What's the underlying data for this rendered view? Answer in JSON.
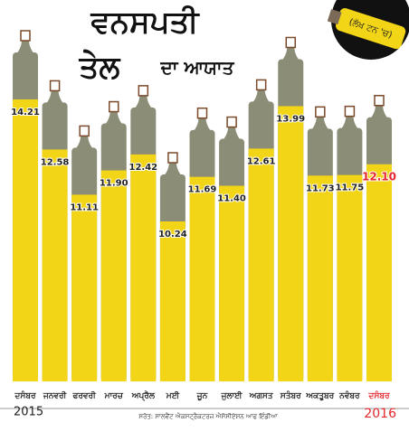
{
  "chart_data": {
    "type": "bar",
    "title_lines": [
      "ਵਨਸਪਤੀ",
      "ਤੇਲ",
      "ਦਾ ਆਯਾਤ"
    ],
    "unit": "(ਲੱਖ ਟਨ 'ਚ)",
    "categories": [
      "ਦਸੰਬਰ",
      "ਜਨਵਰੀ",
      "ਫਰਵਰੀ",
      "ਮਾਰਚ",
      "ਅਪ੍ਰੈਲ",
      "ਮਈ",
      "ਜੂਨ",
      "ਜੁਲਾਈ",
      "ਅਗਸਤ",
      "ਸਤੰਬਰ",
      "ਅਕਤੂਬਰ",
      "ਨਵੰਬਰ",
      "ਦਸੰਬਰ"
    ],
    "values": [
      14.21,
      12.58,
      11.11,
      11.9,
      12.42,
      10.24,
      11.69,
      11.4,
      12.61,
      13.99,
      11.73,
      11.75,
      12.1
    ],
    "value_labels": [
      "14.21",
      "12.58",
      "11.11",
      "11.90",
      "12.42",
      "10.24",
      "11.69",
      "11.40",
      "12.61",
      "13.99",
      "11.73",
      "11.75",
      "12.10"
    ],
    "color": "#f2d516",
    "highlight_color": "#e3262b",
    "years": [
      "2015",
      "2016"
    ],
    "source": "ਸਰੋਤ: ਸਾਲਵੈਂਟ ਐਕਸਟ੍ਰੈਕਟਰਜ਼ ਐਸੋਸੀਏਸ਼ਨ ਆਫ ਇੰਡੀਆ"
  }
}
